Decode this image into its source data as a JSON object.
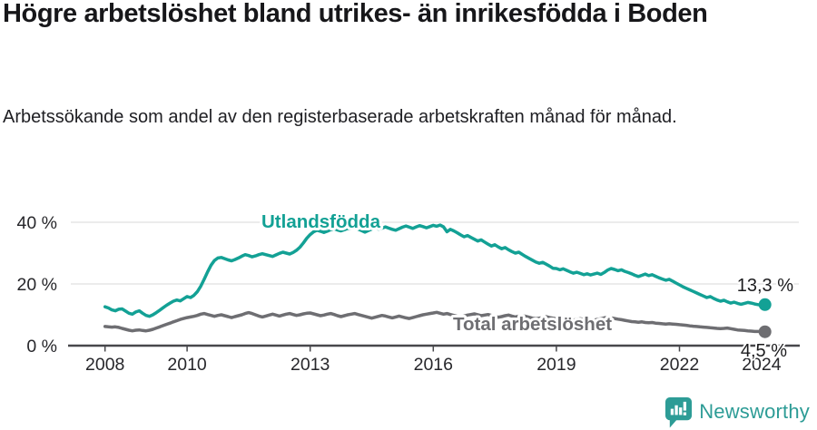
{
  "header": {
    "title": "Högre arbetslöshet bland utrikes- än inrikesfödda i Boden",
    "subtitle": "Arbetssökande som andel av den registerbaserade arbetskraften månad för månad."
  },
  "chart_data": {
    "type": "line",
    "title": "Högre arbetslöshet bland utrikes- än inrikesfödda i Boden",
    "x_unit": "monthly observations, Jan 2008 – early 2024",
    "grid": "horizontal gridlines at 20 % and 40 %",
    "legend_position": "labels drawn on chart next to each line",
    "ylim": [
      0,
      44
    ],
    "y_ticks": [
      {
        "label": "0 %",
        "value": 0
      },
      {
        "label": "20 %",
        "value": 20
      },
      {
        "label": "40 %",
        "value": 40
      }
    ],
    "x_ticks": [
      {
        "label": "2008",
        "year": 2008
      },
      {
        "label": "2010",
        "year": 2010
      },
      {
        "label": "2013",
        "year": 2013
      },
      {
        "label": "2016",
        "year": 2016
      },
      {
        "label": "2019",
        "year": 2019
      },
      {
        "label": "2022",
        "year": 2022
      },
      {
        "label": "2024",
        "year": 2024
      }
    ],
    "series": [
      {
        "name": "Utlandsfödda",
        "color": "#13a195",
        "end_label": "13,3 %",
        "end_value": 13.3,
        "values": [
          12.6,
          12.2,
          11.6,
          11.3,
          11.8,
          11.9,
          11.2,
          10.5,
          10.2,
          10.9,
          11.3,
          10.5,
          9.8,
          9.5,
          10.0,
          10.7,
          11.5,
          12.3,
          13.1,
          13.8,
          14.4,
          14.8,
          14.5,
          15.2,
          15.9,
          15.6,
          16.3,
          17.5,
          19.3,
          21.5,
          23.9,
          26.1,
          27.6,
          28.4,
          28.6,
          28.2,
          27.8,
          27.5,
          27.9,
          28.4,
          29.0,
          29.5,
          29.2,
          28.8,
          29.1,
          29.5,
          29.8,
          29.5,
          29.2,
          28.9,
          29.4,
          29.9,
          30.3,
          30.0,
          29.7,
          30.2,
          30.9,
          31.9,
          33.3,
          34.8,
          36.0,
          36.9,
          37.4,
          37.1,
          36.7,
          37.1,
          37.6,
          37.9,
          37.5,
          37.2,
          37.6,
          38.0,
          37.9,
          38.2,
          37.8,
          37.3,
          36.8,
          37.3,
          37.8,
          38.2,
          37.8,
          38.1,
          38.5,
          38.1,
          37.7,
          37.4,
          37.9,
          38.4,
          38.8,
          38.4,
          38.0,
          38.5,
          38.9,
          38.6,
          38.2,
          38.6,
          39.0,
          38.7,
          39.1,
          38.5,
          36.9,
          37.7,
          37.2,
          36.6,
          35.9,
          35.3,
          35.7,
          35.1,
          34.5,
          33.9,
          34.3,
          33.6,
          32.9,
          32.3,
          32.7,
          32.0,
          31.4,
          31.8,
          31.1,
          30.5,
          30.0,
          30.3,
          29.6,
          28.9,
          28.3,
          27.7,
          27.1,
          26.7,
          27.0,
          26.4,
          25.8,
          25.1,
          25.0,
          24.6,
          24.9,
          24.4,
          23.9,
          23.5,
          23.8,
          23.4,
          23.0,
          23.3,
          22.9,
          23.2,
          23.5,
          23.1,
          23.7,
          24.5,
          25.0,
          24.7,
          24.3,
          24.6,
          24.1,
          23.7,
          23.3,
          22.8,
          22.4,
          22.8,
          23.2,
          22.7,
          23.0,
          22.5,
          22.0,
          21.6,
          21.2,
          21.5,
          20.9,
          20.3,
          19.7,
          19.1,
          18.6,
          18.1,
          17.6,
          17.1,
          16.6,
          16.1,
          15.6,
          15.9,
          15.3,
          14.8,
          14.4,
          14.7,
          14.2,
          13.8,
          14.1,
          13.7,
          13.4,
          13.7,
          14.0,
          13.8,
          13.5,
          13.3,
          13.1,
          13.3
        ]
      },
      {
        "name": "Total arbetslöshet",
        "color": "#6e6e72",
        "end_label": "4,5 %",
        "end_value": 4.5,
        "values": [
          6.2,
          6.1,
          6.0,
          6.1,
          5.9,
          5.6,
          5.3,
          5.0,
          4.8,
          5.0,
          5.1,
          4.9,
          4.8,
          5.0,
          5.3,
          5.7,
          6.1,
          6.5,
          6.9,
          7.3,
          7.7,
          8.1,
          8.5,
          8.8,
          9.1,
          9.3,
          9.5,
          9.8,
          10.2,
          10.4,
          10.1,
          9.8,
          9.5,
          9.8,
          10.0,
          9.7,
          9.4,
          9.1,
          9.4,
          9.7,
          10.0,
          10.4,
          10.7,
          10.4,
          10.0,
          9.6,
          9.3,
          9.6,
          9.9,
          10.2,
          9.9,
          9.6,
          9.9,
          10.2,
          10.4,
          10.1,
          9.8,
          10.0,
          10.3,
          10.5,
          10.6,
          10.3,
          10.0,
          9.7,
          9.9,
          10.2,
          10.4,
          10.1,
          9.7,
          9.4,
          9.7,
          10.0,
          10.2,
          10.4,
          10.1,
          9.8,
          9.5,
          9.2,
          8.9,
          9.2,
          9.5,
          9.8,
          9.6,
          9.3,
          9.0,
          9.3,
          9.6,
          9.3,
          9.0,
          8.8,
          9.1,
          9.4,
          9.7,
          10.0,
          10.2,
          10.4,
          10.6,
          10.8,
          10.5,
          10.2,
          10.4,
          10.1,
          9.8,
          9.5,
          9.3,
          9.6,
          9.9,
          10.1,
          10.3,
          10.0,
          9.7,
          9.9,
          10.1,
          9.8,
          9.5,
          9.2,
          9.4,
          9.7,
          9.9,
          9.6,
          9.3,
          9.6,
          9.8,
          9.5,
          9.2,
          8.9,
          8.7,
          8.9,
          9.1,
          9.4,
          9.1,
          8.9,
          8.7,
          8.9,
          9.1,
          8.8,
          8.5,
          8.3,
          8.5,
          8.7,
          8.5,
          8.3,
          8.1,
          8.3,
          8.5,
          8.7,
          9.0,
          9.2,
          9.0,
          8.8,
          8.6,
          8.4,
          8.2,
          8.0,
          7.8,
          7.7,
          7.6,
          7.7,
          7.5,
          7.4,
          7.5,
          7.3,
          7.2,
          7.1,
          7.0,
          7.1,
          7.0,
          6.9,
          6.8,
          6.7,
          6.6,
          6.4,
          6.3,
          6.2,
          6.1,
          6.0,
          5.9,
          5.8,
          5.7,
          5.6,
          5.5,
          5.6,
          5.7,
          5.5,
          5.3,
          5.1,
          5.0,
          4.9,
          4.8,
          4.7,
          4.6,
          4.6,
          4.5,
          4.5
        ]
      }
    ]
  },
  "footer": {
    "brand": "Newsworthy",
    "brand_color": "#2d9c96"
  }
}
